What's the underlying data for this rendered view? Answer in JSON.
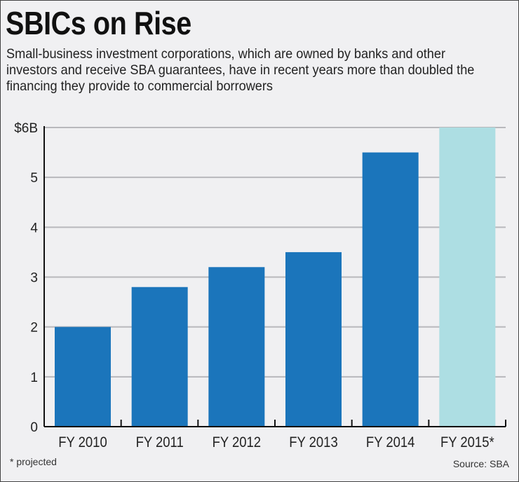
{
  "chart_data": {
    "type": "bar",
    "title": "SBICs on Rise",
    "subtitle": "Small-business investment corporations, which are owned by banks and other investors and receive SBA guarantees, have in recent years more than doubled the financing they provide to commercial borrowers",
    "categories": [
      "FY 2010",
      "FY 2011",
      "FY 2012",
      "FY 2013",
      "FY 2014",
      "FY 2015*"
    ],
    "values": [
      2.0,
      2.8,
      3.2,
      3.5,
      5.5,
      6.0
    ],
    "projected": [
      false,
      false,
      false,
      false,
      false,
      true
    ],
    "ylim": [
      0,
      6
    ],
    "yticks": [
      "0",
      "1",
      "2",
      "3",
      "4",
      "5",
      "$6B"
    ],
    "grid": true,
    "colors": {
      "actual": "#1b75bb",
      "projected": "#addee3",
      "grid": "#b8b8bc"
    },
    "footnote": "* projected",
    "source": "Source: SBA"
  }
}
